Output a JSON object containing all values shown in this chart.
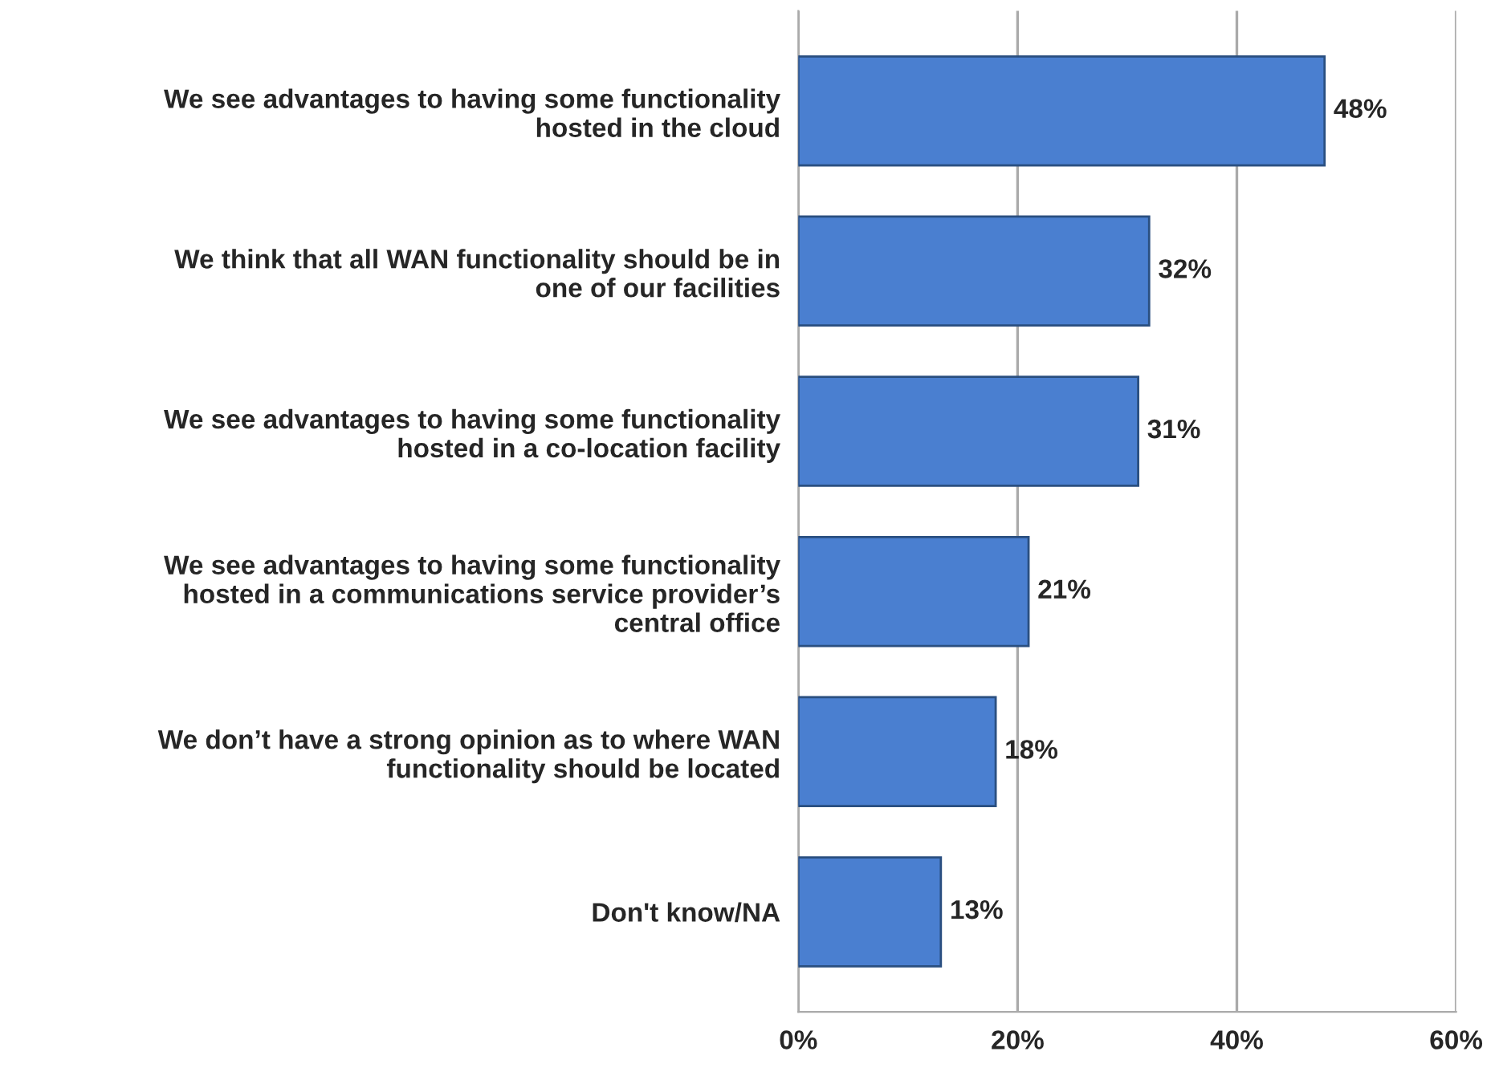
{
  "chart_data": {
    "type": "bar",
    "orientation": "horizontal",
    "categories": [
      "We see advantages to having some functionality\nhosted in the cloud",
      "We think that all WAN functionality should be in\none of our facilities",
      "We see advantages to having some functionality\nhosted in a co-location facility",
      "We see advantages to having some functionality\nhosted in a communications service provider’s\ncentral office",
      "We don’t have a strong opinion as to where WAN\nfunctionality should be located",
      "Don't know/NA"
    ],
    "values": [
      48,
      32,
      31,
      21,
      18,
      13
    ],
    "value_labels": [
      "48%",
      "32%",
      "31%",
      "21%",
      "18%",
      "13%"
    ],
    "color": "#4a7fd0",
    "xlim": [
      0,
      60
    ],
    "xticks": [
      {
        "value": 0,
        "label": "0%"
      },
      {
        "value": 20,
        "label": "20%"
      },
      {
        "value": 40,
        "label": "40%"
      },
      {
        "value": 60,
        "label": "60%"
      }
    ],
    "grid": "x",
    "legend": false
  }
}
